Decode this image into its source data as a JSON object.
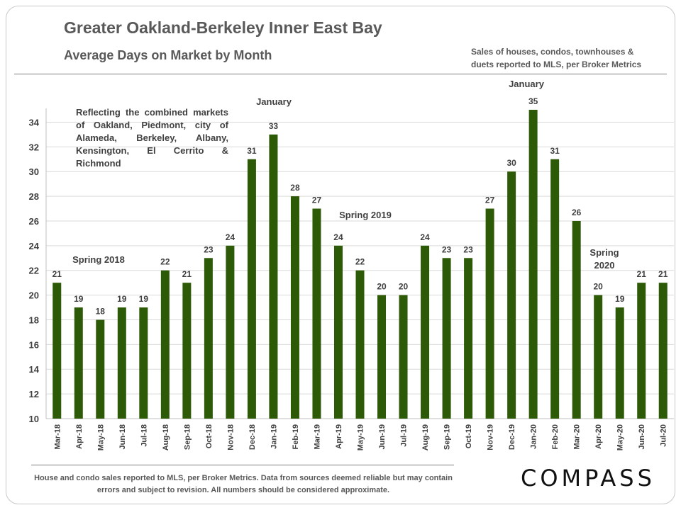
{
  "title": "Greater Oakland-Berkeley Inner East Bay",
  "subtitle": "Average Days on Market by Month",
  "source_note": "Sales of houses, condos, townhouses & duets reported to MLS, per Broker Metrics",
  "market_note": "Reflecting the combined markets of Oakland, Piedmont, city of Alameda, Berkeley, Albany, Kensington, El Cerrito & Richmond",
  "footer": "House and condo sales reported to MLS, per Broker Metrics. Data from sources deemed reliable but may contain errors and subject to revision. All numbers should be considered approximate.",
  "logo": "COMPASS",
  "chart_data": {
    "type": "bar",
    "categories": [
      "Mar-18",
      "Apr-18",
      "May-18",
      "Jun-18",
      "Jul-18",
      "Aug-18",
      "Sep-18",
      "Oct-18",
      "Nov-18",
      "Dec-18",
      "Jan-19",
      "Feb-19",
      "Mar-19",
      "Apr-19",
      "May-19",
      "Jun-19",
      "Jul-19",
      "Aug-19",
      "Sep-19",
      "Oct-19",
      "Nov-19",
      "Dec-19",
      "Jan-20",
      "Feb-20",
      "Mar-20",
      "Apr-20",
      "May-20",
      "Jun-20",
      "Jul-20"
    ],
    "values": [
      21,
      19,
      18,
      19,
      19,
      22,
      21,
      23,
      24,
      31,
      33,
      28,
      27,
      24,
      22,
      20,
      20,
      24,
      23,
      23,
      27,
      30,
      35,
      31,
      26,
      20,
      19,
      21,
      21
    ],
    "ylim": [
      10,
      35
    ],
    "yticks": [
      10,
      12,
      14,
      16,
      18,
      20,
      22,
      24,
      26,
      28,
      30,
      32,
      34
    ],
    "grid": true,
    "bar_color": "#2d5a06",
    "annotations": [
      {
        "text": "Spring 2018",
        "near": "Apr-18"
      },
      {
        "text": "January",
        "near": "Jan-19"
      },
      {
        "text": "Spring 2019",
        "near": "Apr-19"
      },
      {
        "text": "January",
        "near": "Jan-20"
      },
      {
        "text": "Spring 2020",
        "near": "Apr-20"
      }
    ]
  }
}
